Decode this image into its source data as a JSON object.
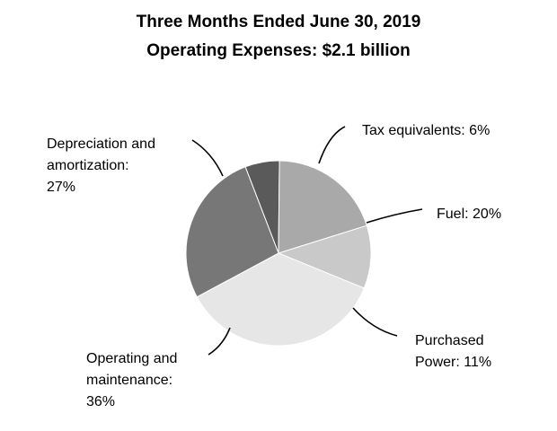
{
  "chart_data": {
    "type": "pie",
    "title": "Three Months Ended June 30, 2019",
    "subtitle": "Operating Expenses: $2.1 billion",
    "slices": [
      {
        "label": "Tax equivalents",
        "value": 6,
        "display": "Tax equivalents: 6%",
        "color": "#5a5a5a"
      },
      {
        "label": "Fuel",
        "value": 20,
        "display": "Fuel: 20%",
        "color": "#a9a9a9"
      },
      {
        "label": "Purchased Power",
        "value": 11,
        "display": "Purchased\nPower: 11%",
        "color": "#c9c9c9"
      },
      {
        "label": "Operating and maintenance",
        "value": 36,
        "display": "Operating and\nmaintenance:\n36%",
        "color": "#e6e6e6"
      },
      {
        "label": "Depreciation and amortization",
        "value": 27,
        "display": "Depreciation and\namortization:\n27%",
        "color": "#777777"
      }
    ]
  }
}
